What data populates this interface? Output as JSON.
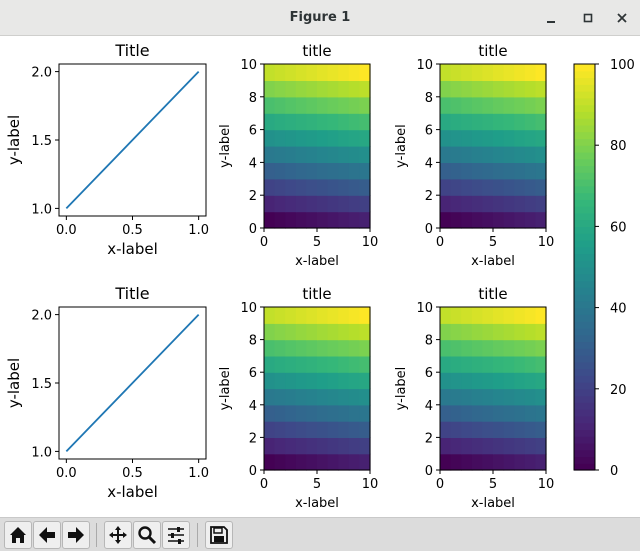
{
  "window": {
    "title": "Figure 1"
  },
  "colors": {
    "line": "#1f77b4",
    "viridis": [
      "#440154",
      "#482878",
      "#3e4989",
      "#31688e",
      "#26828e",
      "#1f9e89",
      "#35b779",
      "#6ece58",
      "#b5de2b",
      "#fde725"
    ]
  },
  "toolbar": {
    "buttons": [
      "home-icon",
      "back-icon",
      "forward-icon",
      "pan-icon",
      "zoom-icon",
      "configure-subplots-icon",
      "save-icon"
    ]
  },
  "colorbar": {
    "ticks": [
      "0",
      "20",
      "40",
      "60",
      "80",
      "100"
    ],
    "range": [
      0,
      100
    ]
  },
  "chart_data": [
    {
      "type": "line",
      "title": "Title",
      "xlabel": "x-label",
      "ylabel": "y-label",
      "x": [
        0,
        1
      ],
      "y": [
        1.0,
        2.0
      ],
      "xlim": [
        0,
        1
      ],
      "ylim": [
        1.0,
        2.0
      ],
      "xticks": [
        "0.0",
        "0.5",
        "1.0"
      ],
      "yticks": [
        "1.0",
        "1.5",
        "2.0"
      ]
    },
    {
      "type": "heatmap",
      "title": "title",
      "xlabel": "x-label",
      "ylabel": "y-label",
      "xlim": [
        0,
        10
      ],
      "ylim": [
        0,
        10
      ],
      "xticks": [
        "0",
        "5",
        "10"
      ],
      "yticks": [
        "0",
        "2",
        "4",
        "6",
        "8",
        "10"
      ],
      "values": [
        [
          0,
          1,
          2,
          3,
          4,
          5,
          6,
          7,
          8,
          9
        ],
        [
          10,
          11,
          12,
          13,
          14,
          15,
          16,
          17,
          18,
          19
        ],
        [
          20,
          21,
          22,
          23,
          24,
          25,
          26,
          27,
          28,
          29
        ],
        [
          30,
          31,
          32,
          33,
          34,
          35,
          36,
          37,
          38,
          39
        ],
        [
          40,
          41,
          42,
          43,
          44,
          45,
          46,
          47,
          48,
          49
        ],
        [
          50,
          51,
          52,
          53,
          54,
          55,
          56,
          57,
          58,
          59
        ],
        [
          60,
          61,
          62,
          63,
          64,
          65,
          66,
          67,
          68,
          69
        ],
        [
          70,
          71,
          72,
          73,
          74,
          75,
          76,
          77,
          78,
          79
        ],
        [
          80,
          81,
          82,
          83,
          84,
          85,
          86,
          87,
          88,
          89
        ],
        [
          90,
          91,
          92,
          93,
          94,
          95,
          96,
          97,
          98,
          99
        ]
      ]
    },
    {
      "type": "heatmap",
      "title": "title",
      "xlabel": "x-label",
      "ylabel": "y-label",
      "xlim": [
        0,
        10
      ],
      "ylim": [
        0,
        10
      ],
      "xticks": [
        "0",
        "5",
        "10"
      ],
      "yticks": [
        "0",
        "2",
        "4",
        "6",
        "8",
        "10"
      ],
      "values": [
        [
          0,
          1,
          2,
          3,
          4,
          5,
          6,
          7,
          8,
          9
        ],
        [
          10,
          11,
          12,
          13,
          14,
          15,
          16,
          17,
          18,
          19
        ],
        [
          20,
          21,
          22,
          23,
          24,
          25,
          26,
          27,
          28,
          29
        ],
        [
          30,
          31,
          32,
          33,
          34,
          35,
          36,
          37,
          38,
          39
        ],
        [
          40,
          41,
          42,
          43,
          44,
          45,
          46,
          47,
          48,
          49
        ],
        [
          50,
          51,
          52,
          53,
          54,
          55,
          56,
          57,
          58,
          59
        ],
        [
          60,
          61,
          62,
          63,
          64,
          65,
          66,
          67,
          68,
          69
        ],
        [
          70,
          71,
          72,
          73,
          74,
          75,
          76,
          77,
          78,
          79
        ],
        [
          80,
          81,
          82,
          83,
          84,
          85,
          86,
          87,
          88,
          89
        ],
        [
          90,
          91,
          92,
          93,
          94,
          95,
          96,
          97,
          98,
          99
        ]
      ]
    },
    {
      "type": "line",
      "title": "Title",
      "xlabel": "x-label",
      "ylabel": "y-label",
      "x": [
        0,
        1
      ],
      "y": [
        1.0,
        2.0
      ],
      "xlim": [
        0,
        1
      ],
      "ylim": [
        1.0,
        2.0
      ],
      "xticks": [
        "0.0",
        "0.5",
        "1.0"
      ],
      "yticks": [
        "1.0",
        "1.5",
        "2.0"
      ]
    },
    {
      "type": "heatmap",
      "title": "title",
      "xlabel": "x-label",
      "ylabel": "y-label",
      "xlim": [
        0,
        10
      ],
      "ylim": [
        0,
        10
      ],
      "xticks": [
        "0",
        "5",
        "10"
      ],
      "yticks": [
        "0",
        "2",
        "4",
        "6",
        "8",
        "10"
      ],
      "values": [
        [
          0,
          1,
          2,
          3,
          4,
          5,
          6,
          7,
          8,
          9
        ],
        [
          10,
          11,
          12,
          13,
          14,
          15,
          16,
          17,
          18,
          19
        ],
        [
          20,
          21,
          22,
          23,
          24,
          25,
          26,
          27,
          28,
          29
        ],
        [
          30,
          31,
          32,
          33,
          34,
          35,
          36,
          37,
          38,
          39
        ],
        [
          40,
          41,
          42,
          43,
          44,
          45,
          46,
          47,
          48,
          49
        ],
        [
          50,
          51,
          52,
          53,
          54,
          55,
          56,
          57,
          58,
          59
        ],
        [
          60,
          61,
          62,
          63,
          64,
          65,
          66,
          67,
          68,
          69
        ],
        [
          70,
          71,
          72,
          73,
          74,
          75,
          76,
          77,
          78,
          79
        ],
        [
          80,
          81,
          82,
          83,
          84,
          85,
          86,
          87,
          88,
          89
        ],
        [
          90,
          91,
          92,
          93,
          94,
          95,
          96,
          97,
          98,
          99
        ]
      ]
    },
    {
      "type": "heatmap",
      "title": "title",
      "xlabel": "x-label",
      "ylabel": "y-label",
      "xlim": [
        0,
        10
      ],
      "ylim": [
        0,
        10
      ],
      "xticks": [
        "0",
        "5",
        "10"
      ],
      "yticks": [
        "0",
        "2",
        "4",
        "6",
        "8",
        "10"
      ],
      "values": [
        [
          0,
          1,
          2,
          3,
          4,
          5,
          6,
          7,
          8,
          9
        ],
        [
          10,
          11,
          12,
          13,
          14,
          15,
          16,
          17,
          18,
          19
        ],
        [
          20,
          21,
          22,
          23,
          24,
          25,
          26,
          27,
          28,
          29
        ],
        [
          30,
          31,
          32,
          33,
          34,
          35,
          36,
          37,
          38,
          39
        ],
        [
          40,
          41,
          42,
          43,
          44,
          45,
          46,
          47,
          48,
          49
        ],
        [
          50,
          51,
          52,
          53,
          54,
          55,
          56,
          57,
          58,
          59
        ],
        [
          60,
          61,
          62,
          63,
          64,
          65,
          66,
          67,
          68,
          69
        ],
        [
          70,
          71,
          72,
          73,
          74,
          75,
          76,
          77,
          78,
          79
        ],
        [
          80,
          81,
          82,
          83,
          84,
          85,
          86,
          87,
          88,
          89
        ],
        [
          90,
          91,
          92,
          93,
          94,
          95,
          96,
          97,
          98,
          99
        ]
      ]
    }
  ]
}
